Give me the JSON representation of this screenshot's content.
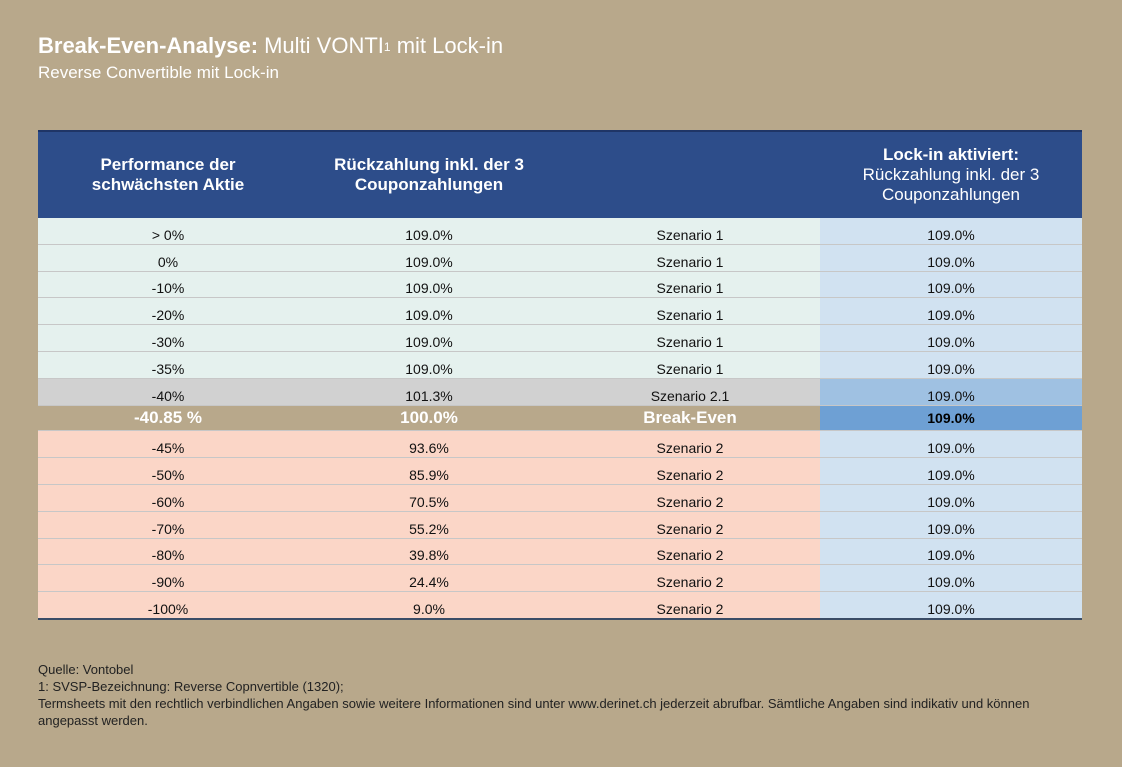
{
  "title": {
    "bold": "Break-Even-Analyse:",
    "rest": "Multi VONTI",
    "sup": "1",
    "rest2": " mit Lock-in",
    "subtitle": "Reverse Convertible mit Lock-in"
  },
  "colors": {
    "background": "#b8a88b",
    "header": "#2d4d8a",
    "positive_rows": "#e5f1ee",
    "gray_row": "#d1d1d1",
    "negative_rows": "#fbd6c7",
    "lockin_column": "#d1e2f1",
    "lockin_highlight": "#6ea0d4"
  },
  "chart_data": {
    "type": "table",
    "columns": [
      "Performance der schwächsten Aktie",
      "Rückzahlung inkl. der 3 Couponzahlungen",
      "",
      "Lock-in aktiviert: Rückzahlung inkl. der 3 Couponzahlungen"
    ],
    "header": {
      "col1_line1": "Performance der",
      "col1_line2": "schwächsten Aktie",
      "col2_line1": "Rückzahlung inkl. der 3",
      "col2_line2": "Couponzahlungen",
      "col3": "",
      "col4_bold": "Lock-in aktiviert:",
      "col4_line2": "Rückzahlung inkl. der 3",
      "col4_line3": "Couponzahlungen"
    },
    "rows": [
      {
        "performance": "> 0%",
        "repayment": "109.0%",
        "scenario": "Szenario 1",
        "lockin": "109.0%",
        "group": "pos"
      },
      {
        "performance": "0%",
        "repayment": "109.0%",
        "scenario": "Szenario 1",
        "lockin": "109.0%",
        "group": "pos"
      },
      {
        "performance": "-10%",
        "repayment": "109.0%",
        "scenario": "Szenario 1",
        "lockin": "109.0%",
        "group": "pos"
      },
      {
        "performance": "-20%",
        "repayment": "109.0%",
        "scenario": "Szenario 1",
        "lockin": "109.0%",
        "group": "pos"
      },
      {
        "performance": "-30%",
        "repayment": "109.0%",
        "scenario": "Szenario 1",
        "lockin": "109.0%",
        "group": "pos"
      },
      {
        "performance": "-35%",
        "repayment": "109.0%",
        "scenario": "Szenario 1",
        "lockin": "109.0%",
        "group": "pos"
      },
      {
        "performance": "-40%",
        "repayment": "101.3%",
        "scenario": "Szenario 2.1",
        "lockin": "109.0%",
        "group": "gray"
      },
      {
        "performance": "-40.85  %",
        "repayment": "100.0%",
        "scenario": "Break-Even",
        "lockin": "109.0%",
        "group": "be"
      },
      {
        "performance": "-45%",
        "repayment": "93.6%",
        "scenario": "Szenario 2",
        "lockin": "109.0%",
        "group": "neg"
      },
      {
        "performance": "-50%",
        "repayment": "85.9%",
        "scenario": "Szenario 2",
        "lockin": "109.0%",
        "group": "neg"
      },
      {
        "performance": "-60%",
        "repayment": "70.5%",
        "scenario": "Szenario 2",
        "lockin": "109.0%",
        "group": "neg"
      },
      {
        "performance": "-70%",
        "repayment": "55.2%",
        "scenario": "Szenario 2",
        "lockin": "109.0%",
        "group": "neg"
      },
      {
        "performance": "-80%",
        "repayment": "39.8%",
        "scenario": "Szenario 2",
        "lockin": "109.0%",
        "group": "neg"
      },
      {
        "performance": "-90%",
        "repayment": "24.4%",
        "scenario": "Szenario 2",
        "lockin": "109.0%",
        "group": "neg"
      },
      {
        "performance": "-100%",
        "repayment": "9.0%",
        "scenario": "Szenario 2",
        "lockin": "109.0%",
        "group": "neg"
      }
    ]
  },
  "footer": {
    "source": "Quelle: Vontobel",
    "note1": "1:  SVSP-Bezeichnung: Reverse Copnvertible (1320);",
    "note2": "Termsheets mit den rechtlich verbindlichen Angaben sowie weitere Informationen sind unter www.derinet.ch jederzeit abrufbar. Sämtliche Angaben sind indikativ und können angepasst werden."
  }
}
